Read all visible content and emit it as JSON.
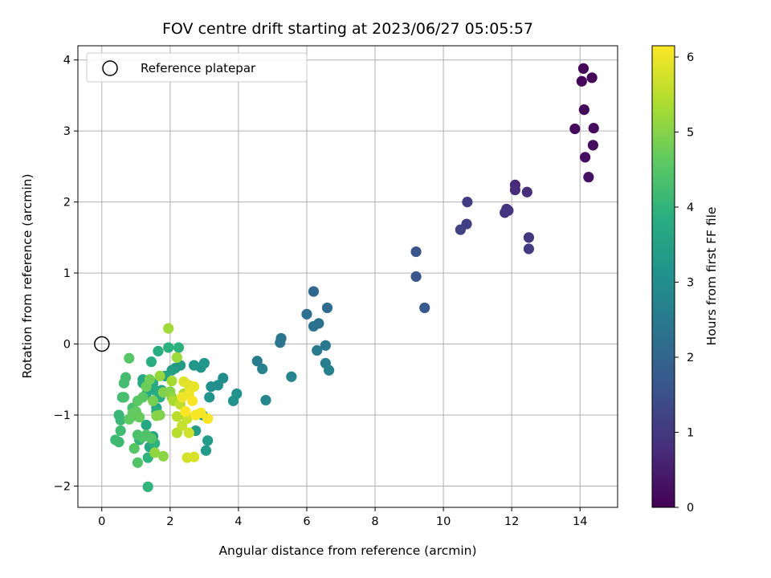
{
  "chart_data": {
    "type": "scatter",
    "title": "FOV centre drift starting at 2023/06/27 05:05:57",
    "xlabel": "Angular distance from reference (arcmin)",
    "ylabel": "Rotation from reference (arcmin)",
    "xlim": [
      -0.7,
      15.1
    ],
    "ylim": [
      -2.3,
      4.2
    ],
    "xticks": [
      0,
      2,
      4,
      6,
      8,
      10,
      12,
      14
    ],
    "yticks": [
      -2,
      -1,
      0,
      1,
      2,
      3,
      4
    ],
    "grid": true,
    "legend": {
      "placement": "upper-left",
      "entries": [
        "Reference platepar"
      ]
    },
    "reference_point": {
      "x": 0,
      "y": 0,
      "label": "Reference platepar"
    },
    "colorbar": {
      "label": "Hours from first FF file",
      "range": [
        0,
        6.15
      ],
      "ticks": [
        0,
        1,
        2,
        3,
        4,
        5,
        6
      ],
      "colormap": "viridis"
    },
    "series": [
      {
        "points": [
          [
            14.1,
            3.88,
            0.05
          ],
          [
            14.35,
            3.75,
            0.08
          ],
          [
            14.05,
            3.7,
            0.1
          ],
          [
            14.12,
            3.3,
            0.12
          ],
          [
            13.85,
            3.03,
            0.15
          ],
          [
            14.4,
            3.04,
            0.2
          ],
          [
            14.38,
            2.8,
            0.22
          ],
          [
            14.15,
            2.63,
            0.25
          ],
          [
            14.25,
            2.35,
            0.3
          ],
          [
            12.1,
            2.24,
            0.7
          ],
          [
            12.1,
            2.17,
            0.75
          ],
          [
            12.45,
            2.14,
            0.8
          ],
          [
            11.85,
            1.9,
            0.85
          ],
          [
            11.8,
            1.85,
            0.9
          ],
          [
            11.9,
            1.88,
            0.95
          ],
          [
            12.5,
            1.5,
            1.0
          ],
          [
            12.5,
            1.34,
            1.05
          ],
          [
            10.7,
            2.0,
            1.1
          ],
          [
            10.68,
            1.69,
            1.15
          ],
          [
            10.5,
            1.61,
            1.2
          ],
          [
            9.2,
            1.3,
            1.6
          ],
          [
            9.2,
            0.95,
            1.65
          ],
          [
            9.45,
            0.51,
            1.7
          ],
          [
            6.2,
            0.74,
            2.1
          ],
          [
            6.6,
            0.51,
            2.15
          ],
          [
            6.0,
            0.42,
            2.2
          ],
          [
            6.35,
            0.29,
            2.25
          ],
          [
            6.2,
            0.25,
            2.3
          ],
          [
            5.25,
            0.08,
            2.35
          ],
          [
            5.22,
            0.02,
            2.4
          ],
          [
            6.55,
            -0.02,
            2.45
          ],
          [
            6.3,
            -0.09,
            2.5
          ],
          [
            4.55,
            -0.24,
            2.55
          ],
          [
            6.55,
            -0.27,
            2.6
          ],
          [
            6.65,
            -0.37,
            2.65
          ],
          [
            4.7,
            -0.35,
            2.7
          ],
          [
            5.55,
            -0.46,
            2.75
          ],
          [
            4.8,
            -0.79,
            2.8
          ],
          [
            3.55,
            -0.48,
            3.0
          ],
          [
            3.4,
            -0.58,
            3.05
          ],
          [
            3.2,
            -0.6,
            3.05
          ],
          [
            3.95,
            -0.7,
            3.1
          ],
          [
            3.85,
            -0.8,
            3.1
          ],
          [
            3.15,
            -0.75,
            3.15
          ],
          [
            3.0,
            -0.27,
            3.2
          ],
          [
            2.9,
            -0.33,
            3.2
          ],
          [
            2.7,
            -0.3,
            3.25
          ],
          [
            2.3,
            -0.3,
            3.3
          ],
          [
            2.15,
            -0.34,
            3.3
          ],
          [
            3.1,
            -1.36,
            3.35
          ],
          [
            3.05,
            -1.5,
            3.35
          ],
          [
            2.95,
            -1.0,
            3.4
          ],
          [
            2.75,
            -1.22,
            3.4
          ],
          [
            2.45,
            -1.01,
            3.45
          ],
          [
            2.05,
            -0.37,
            3.45
          ],
          [
            1.85,
            -0.45,
            3.5
          ],
          [
            1.75,
            -0.65,
            3.5
          ],
          [
            1.6,
            -0.9,
            3.55
          ],
          [
            1.5,
            -1.3,
            3.6
          ],
          [
            1.4,
            -1.45,
            3.6
          ],
          [
            1.3,
            -1.14,
            3.65
          ],
          [
            1.2,
            -0.5,
            3.65
          ],
          [
            1.2,
            -0.55,
            3.7
          ],
          [
            1.5,
            -0.55,
            3.7
          ],
          [
            1.3,
            -0.71,
            3.75
          ],
          [
            1.55,
            -0.65,
            3.75
          ],
          [
            1.6,
            -0.95,
            3.8
          ],
          [
            1.7,
            -0.75,
            3.8
          ],
          [
            1.45,
            -0.25,
            3.85
          ],
          [
            1.65,
            -0.1,
            3.85
          ],
          [
            1.95,
            -0.05,
            3.9
          ],
          [
            2.25,
            -0.05,
            3.9
          ],
          [
            1.55,
            -1.4,
            3.95
          ],
          [
            1.35,
            -1.6,
            3.95
          ],
          [
            1.1,
            -1.35,
            4.0
          ],
          [
            1.35,
            -2.01,
            4.0
          ],
          [
            0.5,
            -1.0,
            4.1
          ],
          [
            0.55,
            -1.07,
            4.1
          ],
          [
            0.4,
            -1.35,
            4.15
          ],
          [
            0.5,
            -1.38,
            4.15
          ],
          [
            0.55,
            -1.22,
            4.2
          ],
          [
            0.6,
            -0.75,
            4.2
          ],
          [
            0.65,
            -0.55,
            4.25
          ],
          [
            0.7,
            -0.47,
            4.25
          ],
          [
            0.65,
            -0.75,
            4.3
          ],
          [
            0.9,
            -0.9,
            4.3
          ],
          [
            1.0,
            -1.01,
            4.35
          ],
          [
            1.05,
            -1.28,
            4.35
          ],
          [
            1.2,
            -1.31,
            4.4
          ],
          [
            1.3,
            -1.28,
            4.4
          ],
          [
            1.45,
            -1.33,
            4.45
          ],
          [
            1.05,
            -1.67,
            4.45
          ],
          [
            0.95,
            -1.47,
            4.5
          ],
          [
            0.8,
            -0.2,
            4.5
          ],
          [
            1.05,
            -0.8,
            4.55
          ],
          [
            1.2,
            -0.75,
            4.55
          ],
          [
            0.8,
            -1.06,
            4.6
          ],
          [
            1.0,
            -0.95,
            4.6
          ],
          [
            0.9,
            -0.98,
            4.65
          ],
          [
            1.1,
            -1.03,
            4.7
          ],
          [
            1.3,
            -0.6,
            4.75
          ],
          [
            1.4,
            -0.5,
            4.8
          ],
          [
            1.5,
            -0.8,
            4.85
          ],
          [
            1.7,
            -1.0,
            4.9
          ],
          [
            1.8,
            -0.68,
            4.95
          ],
          [
            1.6,
            -1.01,
            5.0
          ],
          [
            2.0,
            -0.67,
            5.0
          ],
          [
            1.8,
            -1.58,
            5.05
          ],
          [
            1.55,
            -1.53,
            5.1
          ],
          [
            2.05,
            -0.75,
            5.1
          ],
          [
            1.7,
            -0.45,
            5.15
          ],
          [
            2.2,
            -0.19,
            5.2
          ],
          [
            1.95,
            0.22,
            5.25
          ],
          [
            2.05,
            -0.52,
            5.3
          ],
          [
            2.1,
            -0.8,
            5.35
          ],
          [
            2.4,
            -0.7,
            5.4
          ],
          [
            2.2,
            -1.25,
            5.45
          ],
          [
            2.2,
            -1.02,
            5.5
          ],
          [
            2.3,
            -0.85,
            5.55
          ],
          [
            2.35,
            -1.15,
            5.6
          ],
          [
            2.5,
            -1.05,
            5.65
          ],
          [
            2.55,
            -1.25,
            5.7
          ],
          [
            2.5,
            -1.6,
            5.75
          ],
          [
            2.7,
            -1.59,
            5.8
          ],
          [
            2.4,
            -0.53,
            5.85
          ],
          [
            2.55,
            -0.58,
            5.9
          ],
          [
            2.7,
            -0.6,
            5.95
          ],
          [
            2.35,
            -0.75,
            6.0
          ],
          [
            2.55,
            -0.7,
            6.0
          ],
          [
            2.9,
            -0.97,
            6.05
          ],
          [
            3.1,
            -1.05,
            6.1
          ],
          [
            2.75,
            -1.0,
            6.1
          ],
          [
            2.65,
            -0.8,
            6.1
          ],
          [
            2.45,
            -0.95,
            6.15
          ]
        ]
      }
    ]
  }
}
